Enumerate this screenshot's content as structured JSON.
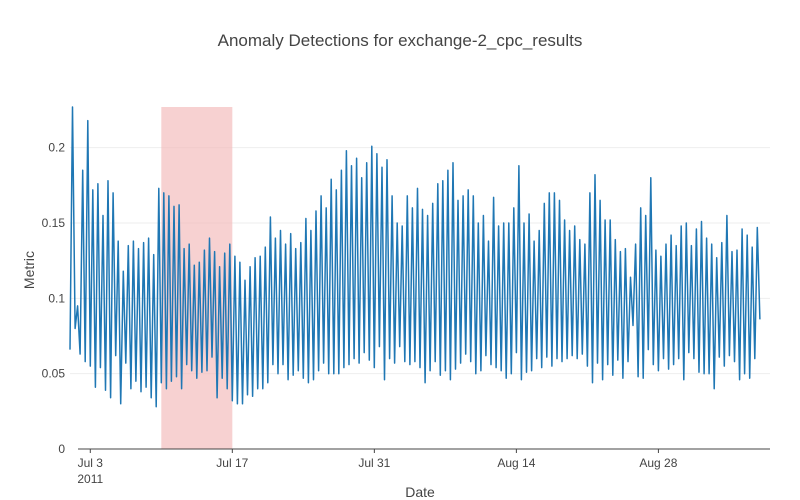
{
  "chart_data": {
    "type": "line",
    "title": "Anomaly Detections for exchange-2_cpc_results",
    "xlabel": "Date",
    "ylabel": "Metric",
    "x_range": [
      "2011-07-01",
      "2011-09-08"
    ],
    "ylim": [
      0,
      0.227
    ],
    "y_ticks": [
      0,
      0.05,
      0.1,
      0.15,
      0.2
    ],
    "y_tick_labels": [
      "0",
      "0.05",
      "0.1",
      "0.15",
      "0.2"
    ],
    "x_ticks": [
      "2011-07-03",
      "2011-07-17",
      "2011-07-31",
      "2011-08-14",
      "2011-08-28"
    ],
    "x_tick_labels": [
      "Jul 3",
      "Jul 17",
      "Jul 31",
      "Aug 14",
      "Aug 28"
    ],
    "x_tick_sublabel": "2011",
    "grid": "horizontal",
    "anomaly_window": {
      "start": "2011-07-10",
      "end": "2011-07-17",
      "color": "#f2b8b8"
    },
    "series": [
      {
        "color": "#1f77b4",
        "x_start": "2011-07-01",
        "points_per_day": 4,
        "values": [
          0.066,
          0.227,
          0.08,
          0.095,
          0.063,
          0.185,
          0.058,
          0.218,
          0.055,
          0.172,
          0.041,
          0.176,
          0.054,
          0.155,
          0.039,
          0.178,
          0.034,
          0.17,
          0.062,
          0.138,
          0.03,
          0.118,
          0.057,
          0.135,
          0.04,
          0.138,
          0.045,
          0.133,
          0.038,
          0.137,
          0.041,
          0.14,
          0.034,
          0.129,
          0.028,
          0.173,
          0.044,
          0.17,
          0.04,
          0.168,
          0.045,
          0.161,
          0.048,
          0.162,
          0.04,
          0.133,
          0.056,
          0.136,
          0.052,
          0.122,
          0.047,
          0.124,
          0.051,
          0.132,
          0.052,
          0.14,
          0.061,
          0.131,
          0.034,
          0.121,
          0.047,
          0.13,
          0.04,
          0.136,
          0.032,
          0.128,
          0.03,
          0.124,
          0.03,
          0.112,
          0.036,
          0.121,
          0.035,
          0.127,
          0.04,
          0.128,
          0.04,
          0.134,
          0.044,
          0.154,
          0.056,
          0.14,
          0.05,
          0.145,
          0.056,
          0.136,
          0.046,
          0.143,
          0.049,
          0.133,
          0.052,
          0.137,
          0.047,
          0.153,
          0.044,
          0.145,
          0.046,
          0.158,
          0.052,
          0.168,
          0.057,
          0.16,
          0.05,
          0.179,
          0.05,
          0.172,
          0.05,
          0.185,
          0.054,
          0.198,
          0.056,
          0.188,
          0.06,
          0.193,
          0.057,
          0.18,
          0.064,
          0.19,
          0.059,
          0.201,
          0.054,
          0.196,
          0.068,
          0.187,
          0.046,
          0.192,
          0.06,
          0.168,
          0.057,
          0.15,
          0.068,
          0.148,
          0.058,
          0.168,
          0.056,
          0.16,
          0.058,
          0.173,
          0.054,
          0.159,
          0.044,
          0.155,
          0.052,
          0.163,
          0.058,
          0.176,
          0.049,
          0.178,
          0.052,
          0.185,
          0.046,
          0.19,
          0.053,
          0.165,
          0.057,
          0.168,
          0.063,
          0.172,
          0.058,
          0.168,
          0.05,
          0.15,
          0.052,
          0.155,
          0.062,
          0.138,
          0.056,
          0.167,
          0.054,
          0.148,
          0.052,
          0.15,
          0.047,
          0.15,
          0.05,
          0.16,
          0.064,
          0.188,
          0.046,
          0.15,
          0.051,
          0.156,
          0.052,
          0.138,
          0.06,
          0.145,
          0.054,
          0.163,
          0.061,
          0.17,
          0.055,
          0.17,
          0.06,
          0.165,
          0.058,
          0.152,
          0.06,
          0.145,
          0.062,
          0.148,
          0.06,
          0.139,
          0.063,
          0.136,
          0.055,
          0.17,
          0.044,
          0.182,
          0.057,
          0.165,
          0.046,
          0.152,
          0.056,
          0.152,
          0.049,
          0.139,
          0.059,
          0.131,
          0.047,
          0.133,
          0.058,
          0.114,
          0.082,
          0.136,
          0.048,
          0.16,
          0.047,
          0.155,
          0.066,
          0.18,
          0.056,
          0.132,
          0.052,
          0.128,
          0.06,
          0.136,
          0.053,
          0.142,
          0.056,
          0.135,
          0.06,
          0.148,
          0.046,
          0.15,
          0.064,
          0.135,
          0.06,
          0.146,
          0.051,
          0.151,
          0.05,
          0.14,
          0.05,
          0.136,
          0.04,
          0.127,
          0.061,
          0.137,
          0.055,
          0.155,
          0.062,
          0.131,
          0.058,
          0.132,
          0.046,
          0.146,
          0.05,
          0.142,
          0.047,
          0.134,
          0.06,
          0.147,
          0.086
        ]
      }
    ]
  }
}
